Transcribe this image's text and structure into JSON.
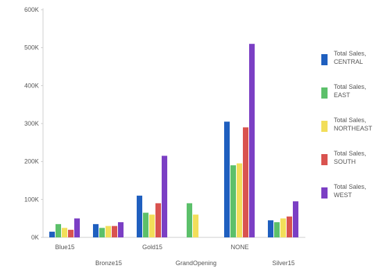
{
  "chart_data": {
    "type": "bar",
    "categories": [
      "Blue15",
      "Bronze15",
      "Gold15",
      "GrandOpening",
      "NONE",
      "Silver15"
    ],
    "series": [
      {
        "name": "Total Sales, CENTRAL",
        "color": "#1f5fbf",
        "values": [
          15,
          35,
          110,
          0,
          305,
          45
        ]
      },
      {
        "name": "Total Sales, EAST",
        "color": "#5cc06a",
        "values": [
          35,
          25,
          65,
          90,
          190,
          40
        ]
      },
      {
        "name": "Total Sales, NORTHEAST",
        "color": "#f2de5a",
        "values": [
          25,
          30,
          60,
          60,
          195,
          50
        ]
      },
      {
        "name": "Total Sales, SOUTH",
        "color": "#d9534f",
        "values": [
          20,
          30,
          90,
          0,
          290,
          55
        ]
      },
      {
        "name": "Total Sales, WEST",
        "color": "#7b3fc4",
        "values": [
          50,
          40,
          215,
          0,
          510,
          95
        ]
      }
    ],
    "y_ticks": [
      "0K",
      "100K",
      "200K",
      "300K",
      "400K",
      "500K",
      "600K"
    ],
    "ylim": [
      0,
      600
    ],
    "grid": false,
    "legend": "right",
    "title": "",
    "xlabel": "",
    "ylabel": ""
  }
}
